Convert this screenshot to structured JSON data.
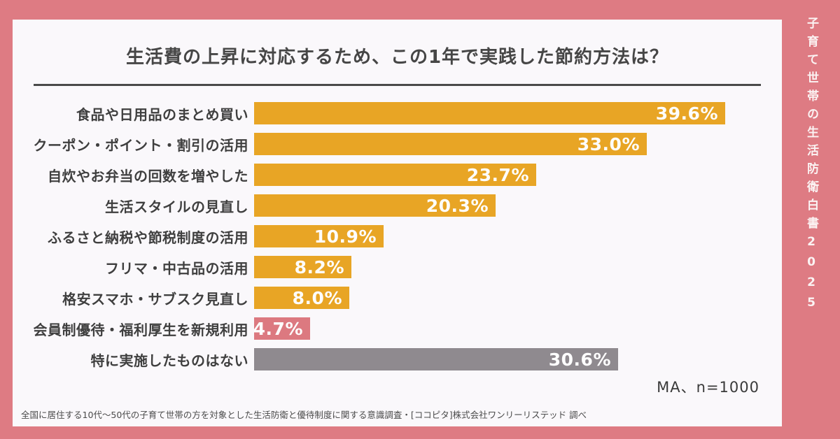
{
  "page": {
    "bg_color": "#DE7B83",
    "card_bg": "#FAF8FB"
  },
  "side_banner": {
    "text": "子育て世帯の生活防衛白書2025",
    "text_color": "#FBF3F3"
  },
  "header": {
    "title": "生活費の上昇に対応するため、この1年で実践した節約方法は？"
  },
  "chart_data": {
    "type": "bar",
    "orientation": "horizontal",
    "categories": [
      "食品や日用品のまとめ買い",
      "クーポン・ポイント・割引の活用",
      "自炊やお弁当の回数を増やした",
      "生活スタイルの見直し",
      "ふるさと納税や節税制度の活用",
      "フリマ・中古品の活用",
      "格安スマホ・サブスク見直し",
      "会員制優待・福利厚生を新規利用",
      "特に実施したものはない"
    ],
    "values": [
      39.6,
      33.0,
      23.7,
      20.3,
      10.9,
      8.2,
      8.0,
      4.7,
      30.6
    ],
    "value_labels": [
      "39.6%",
      "33.0%",
      "23.7%",
      "20.3%",
      "10.9%",
      "8.2%",
      "8.0%",
      "4.7%",
      "30.6%"
    ],
    "bar_colors": [
      "#E8A525",
      "#E8A525",
      "#E8A525",
      "#E8A525",
      "#E8A525",
      "#E8A525",
      "#E8A525",
      "#DC7980",
      "#8F8A8F"
    ],
    "value_label_color": "#FDFDFD",
    "xlim": [
      0,
      40
    ],
    "grid": false,
    "legend": null
  },
  "footer": {
    "meta_note": "MA、n=1000",
    "footnote": "全国に居住する10代〜50代の子育て世帯の方を対象とした生活防衛と優待制度に関する意識調査・[ココピタ]株式会社ワンリーリステッド 調べ"
  }
}
